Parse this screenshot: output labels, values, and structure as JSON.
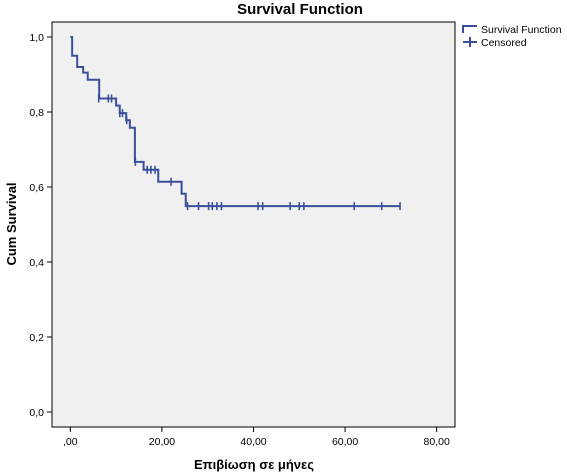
{
  "chart_data": {
    "type": "line",
    "title": "Survival Function",
    "xlabel": "Επιβίωση σε μήνες",
    "ylabel": "Cum Survival",
    "xlim": [
      -4,
      84
    ],
    "ylim": [
      -0.04,
      1.04
    ],
    "x_ticks": [
      {
        "value": 0,
        "label": ",00"
      },
      {
        "value": 20,
        "label": "20,00"
      },
      {
        "value": 40,
        "label": "40,00"
      },
      {
        "value": 60,
        "label": "60,00"
      },
      {
        "value": 80,
        "label": "80,00"
      }
    ],
    "y_ticks": [
      {
        "value": 0,
        "label": "0,0"
      },
      {
        "value": 0.2,
        "label": "0,2"
      },
      {
        "value": 0.4,
        "label": "0,4"
      },
      {
        "value": 0.6,
        "label": "0,6"
      },
      {
        "value": 0.8,
        "label": "0,8"
      },
      {
        "value": 1.0,
        "label": "1,0"
      }
    ],
    "grid": false,
    "legend_position": "top-right, outside plot",
    "series": [
      {
        "name": "Survival Function",
        "kind": "step",
        "points": [
          {
            "x": 0,
            "y": 1.0
          },
          {
            "x": 0.4,
            "y": 0.95
          },
          {
            "x": 1.5,
            "y": 0.92
          },
          {
            "x": 2.8,
            "y": 0.905
          },
          {
            "x": 3.8,
            "y": 0.886
          },
          {
            "x": 6.3,
            "y": 0.836
          },
          {
            "x": 10.0,
            "y": 0.817
          },
          {
            "x": 10.8,
            "y": 0.797
          },
          {
            "x": 12.2,
            "y": 0.778
          },
          {
            "x": 13.0,
            "y": 0.758
          },
          {
            "x": 14.1,
            "y": 0.667
          },
          {
            "x": 16.0,
            "y": 0.646
          },
          {
            "x": 19.2,
            "y": 0.614
          },
          {
            "x": 24.3,
            "y": 0.582
          },
          {
            "x": 25.2,
            "y": 0.549
          },
          {
            "x": 72.0,
            "y": 0.549
          }
        ]
      },
      {
        "name": "Censored",
        "kind": "censor-marks",
        "points": [
          {
            "x": 6.2,
            "y": 0.836
          },
          {
            "x": 8.3,
            "y": 0.836
          },
          {
            "x": 9.0,
            "y": 0.836
          },
          {
            "x": 10.8,
            "y": 0.797
          },
          {
            "x": 11.4,
            "y": 0.797
          },
          {
            "x": 12.3,
            "y": 0.778
          },
          {
            "x": 14.2,
            "y": 0.667
          },
          {
            "x": 16.8,
            "y": 0.646
          },
          {
            "x": 17.6,
            "y": 0.646
          },
          {
            "x": 18.5,
            "y": 0.646
          },
          {
            "x": 22.0,
            "y": 0.614
          },
          {
            "x": 25.6,
            "y": 0.549
          },
          {
            "x": 28.0,
            "y": 0.549
          },
          {
            "x": 30.2,
            "y": 0.549
          },
          {
            "x": 31.0,
            "y": 0.549
          },
          {
            "x": 32.0,
            "y": 0.549
          },
          {
            "x": 33.0,
            "y": 0.549
          },
          {
            "x": 41.0,
            "y": 0.549
          },
          {
            "x": 42.0,
            "y": 0.549
          },
          {
            "x": 48.0,
            "y": 0.549
          },
          {
            "x": 50.0,
            "y": 0.549
          },
          {
            "x": 51.0,
            "y": 0.549
          },
          {
            "x": 62.0,
            "y": 0.549
          },
          {
            "x": 68.0,
            "y": 0.549
          },
          {
            "x": 72.0,
            "y": 0.549
          }
        ]
      }
    ]
  },
  "colors": {
    "series": "#3a4f9a",
    "plot_background": "#f0f0f0",
    "axis": "#000000"
  }
}
